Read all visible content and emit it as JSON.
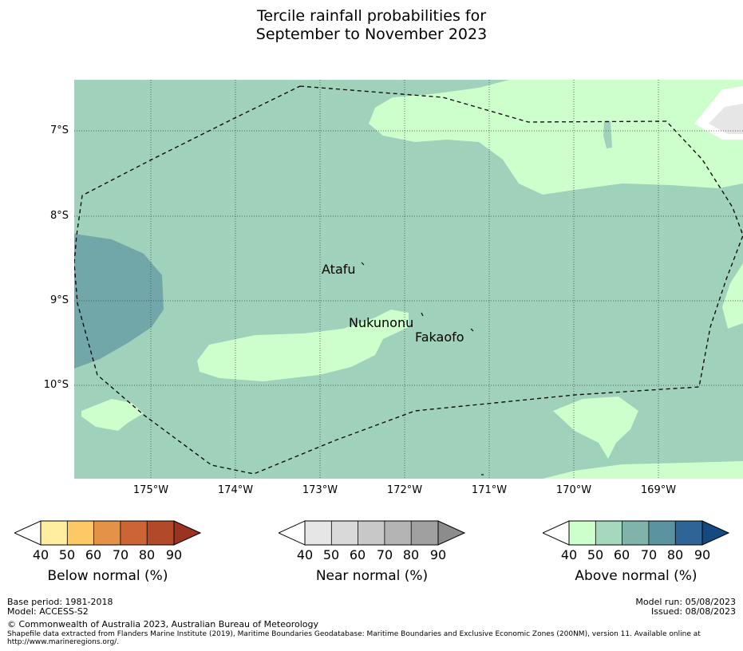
{
  "title": [
    "Tercile rainfall probabilities for",
    "September to November 2023"
  ],
  "map": {
    "lat_labels": [
      "7°S",
      "8°S",
      "9°S",
      "10°S"
    ],
    "lon_labels": [
      "175°W",
      "174°W",
      "173°W",
      "172°W",
      "171°W",
      "170°W",
      "169°W"
    ],
    "places": [
      "Atafu",
      "Nukunonu",
      "Fakaofo"
    ],
    "colors": {
      "above_40_50": "#ccffcc",
      "above_50_60": "#9fd1bb",
      "above_60_70": "#72a7aa",
      "near_40_50": "#e6e6e6"
    }
  },
  "colorbars": [
    {
      "label": "Below normal (%)",
      "ticks": [
        "40",
        "50",
        "60",
        "70",
        "80",
        "90"
      ],
      "colors": [
        "#ffffff",
        "#ffeda0",
        "#fec965",
        "#e39248",
        "#cd6436",
        "#b24a29",
        "#9b3322"
      ]
    },
    {
      "label": "Near normal (%)",
      "ticks": [
        "40",
        "50",
        "60",
        "70",
        "80",
        "90"
      ],
      "colors": [
        "#ffffff",
        "#e6e6e6",
        "#d9d9d9",
        "#c8c8c8",
        "#b4b4b4",
        "#a0a0a0",
        "#8c8c8c"
      ]
    },
    {
      "label": "Above normal (%)",
      "ticks": [
        "40",
        "50",
        "60",
        "70",
        "80",
        "90"
      ],
      "colors": [
        "#ffffff",
        "#ccffcc",
        "#a5d8bd",
        "#80b4aa",
        "#5b93a0",
        "#2f6496",
        "#154a80"
      ]
    }
  ],
  "footer": {
    "base_period": "Base period: 1981-2018",
    "model": "Model: ACCESS-S2",
    "model_run": "Model run: 05/08/2023",
    "issued": "Issued: 08/08/2023",
    "copyright": "© Commonwealth of Australia 2023, Australian Bureau of Meteorology",
    "shapefile_1": "Shapefile data extracted from Flanders Marine Institute (2019), Maritime Boundaries Geodatabase: Maritime Boundaries and Exclusive Economic Zones (200NM), version 11. Available online at",
    "shapefile_2": "http://www.marineregions.org/."
  }
}
